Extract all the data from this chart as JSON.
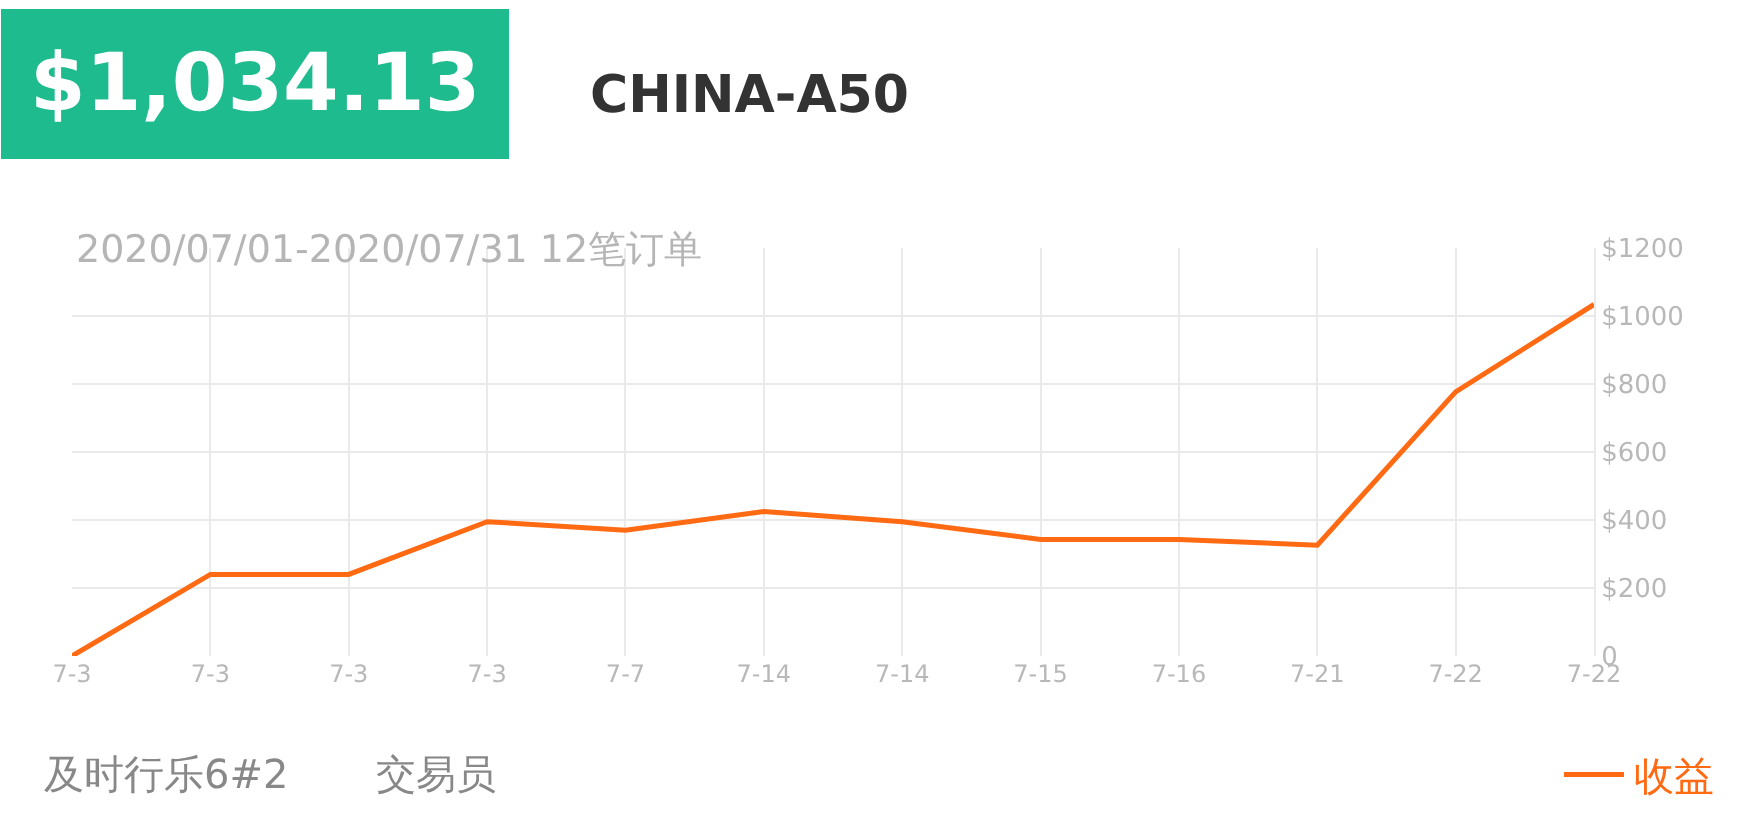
{
  "chart_data": {
    "type": "line",
    "title": "CHINA-A50",
    "subtitle": "2020/07/01-2020/07/31 12笔订单",
    "annotations": [
      "$1,034.13",
      "及时行乐6#2",
      "交易员"
    ],
    "categories": [
      "7-3",
      "7-3",
      "7-3",
      "7-3",
      "7-7",
      "7-14",
      "7-14",
      "7-15",
      "7-16",
      "7-21",
      "7-22",
      "7-22"
    ],
    "series": [
      {
        "name": "收益",
        "color": "#ff6a13",
        "values": [
          0,
          240,
          240,
          395,
          370,
          425,
          395,
          343,
          343,
          326,
          777,
          1034
        ]
      }
    ],
    "ylim": [
      0,
      1200
    ],
    "yticks": [
      0,
      {
        "value": 200,
        "label": "$200"
      },
      {
        "value": 400,
        "label": "$400"
      },
      {
        "value": 600,
        "label": "$600"
      },
      {
        "value": 800,
        "label": "$800"
      },
      {
        "value": 1000,
        "label": "$1000"
      },
      {
        "value": 1200,
        "label": "$1200"
      }
    ],
    "grid": true,
    "legend": "bottom right",
    "marker": "none",
    "line_style": "solid"
  }
}
